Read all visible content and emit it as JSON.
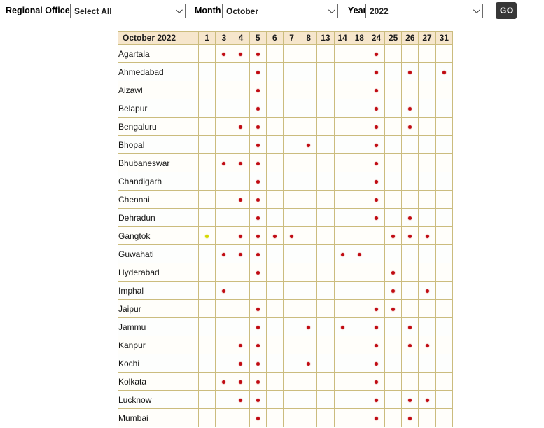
{
  "controls": {
    "regional_office_label": "Regional Office",
    "regional_office_value": "Select All",
    "month_label": "Month",
    "month_value": "October",
    "year_label": "Year",
    "year_value": "2022",
    "go_button": "GO"
  },
  "table": {
    "title": "October 2022",
    "day_columns": [
      "1",
      "3",
      "4",
      "5",
      "6",
      "7",
      "8",
      "13",
      "14",
      "18",
      "24",
      "25",
      "26",
      "27",
      "31"
    ],
    "rows": [
      {
        "city": "Agartala",
        "red_days": [
          3,
          4,
          5,
          24
        ],
        "yellow_days": []
      },
      {
        "city": "Ahmedabad",
        "red_days": [
          5,
          24,
          26,
          31
        ],
        "yellow_days": []
      },
      {
        "city": "Aizawl",
        "red_days": [
          5,
          24
        ],
        "yellow_days": []
      },
      {
        "city": "Belapur",
        "red_days": [
          5,
          24,
          26
        ],
        "yellow_days": []
      },
      {
        "city": "Bengaluru",
        "red_days": [
          4,
          5,
          24,
          26
        ],
        "yellow_days": []
      },
      {
        "city": "Bhopal",
        "red_days": [
          5,
          8,
          24
        ],
        "yellow_days": []
      },
      {
        "city": "Bhubaneswar",
        "red_days": [
          3,
          4,
          5,
          24
        ],
        "yellow_days": []
      },
      {
        "city": "Chandigarh",
        "red_days": [
          5,
          24
        ],
        "yellow_days": []
      },
      {
        "city": "Chennai",
        "red_days": [
          4,
          5,
          24
        ],
        "yellow_days": []
      },
      {
        "city": "Dehradun",
        "red_days": [
          5,
          24,
          26
        ],
        "yellow_days": []
      },
      {
        "city": "Gangtok",
        "red_days": [
          4,
          5,
          6,
          7,
          25,
          26,
          27
        ],
        "yellow_days": [
          1
        ]
      },
      {
        "city": "Guwahati",
        "red_days": [
          3,
          4,
          5,
          14,
          18
        ],
        "yellow_days": []
      },
      {
        "city": "Hyderabad",
        "red_days": [
          5,
          25
        ],
        "yellow_days": []
      },
      {
        "city": "Imphal",
        "red_days": [
          3,
          25,
          27
        ],
        "yellow_days": []
      },
      {
        "city": "Jaipur",
        "red_days": [
          5,
          24,
          25
        ],
        "yellow_days": []
      },
      {
        "city": "Jammu",
        "red_days": [
          5,
          8,
          14,
          24,
          26
        ],
        "yellow_days": []
      },
      {
        "city": "Kanpur",
        "red_days": [
          4,
          5,
          24,
          26,
          27
        ],
        "yellow_days": []
      },
      {
        "city": "Kochi",
        "red_days": [
          4,
          5,
          8,
          24
        ],
        "yellow_days": []
      },
      {
        "city": "Kolkata",
        "red_days": [
          3,
          4,
          5,
          24
        ],
        "yellow_days": []
      },
      {
        "city": "Lucknow",
        "red_days": [
          4,
          5,
          24,
          26,
          27
        ],
        "yellow_days": []
      },
      {
        "city": "Mumbai",
        "red_days": [
          5,
          24,
          26
        ],
        "yellow_days": []
      }
    ]
  },
  "colors": {
    "table_border": "#cbbc7e",
    "header_bg": "#f6e6cc",
    "dot_red": "#c00b12",
    "dot_yellow": "#d6d800",
    "go_button_bg": "#373737"
  }
}
